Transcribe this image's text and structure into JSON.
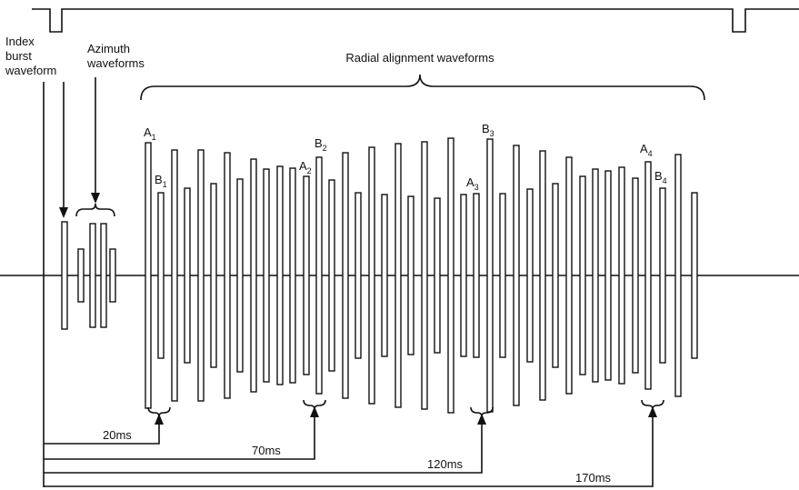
{
  "labels": {
    "index_burst": [
      "Index",
      "burst",
      "waveform"
    ],
    "azimuth": [
      "Azimuth",
      "waveforms"
    ],
    "radial": "Radial alignment waveforms",
    "bars": [
      {
        "letter": "A",
        "sub": "1"
      },
      {
        "letter": "B",
        "sub": "1"
      },
      {
        "letter": "A",
        "sub": "2"
      },
      {
        "letter": "B",
        "sub": "2"
      },
      {
        "letter": "A",
        "sub": "3"
      },
      {
        "letter": "B",
        "sub": "3"
      },
      {
        "letter": "A",
        "sub": "4"
      },
      {
        "letter": "B",
        "sub": "4"
      }
    ],
    "timings": [
      "20ms",
      "70ms",
      "120ms",
      "170ms"
    ]
  }
}
